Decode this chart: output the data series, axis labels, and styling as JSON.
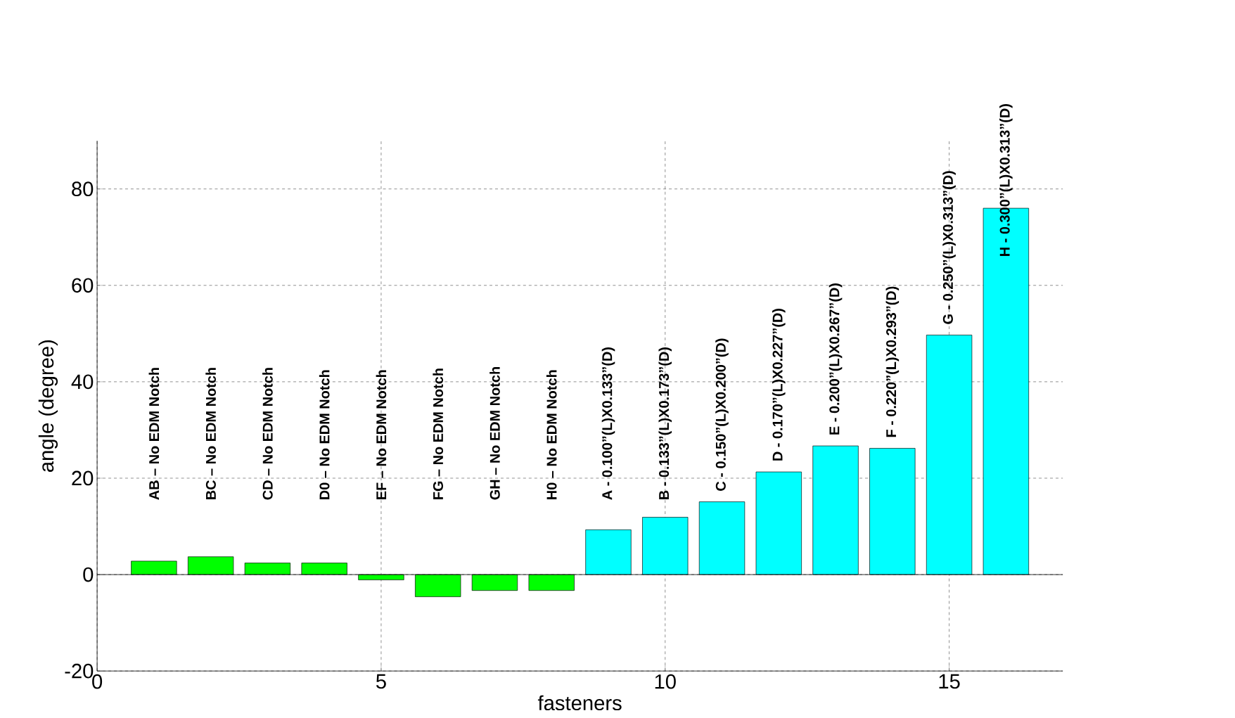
{
  "chart_data": {
    "type": "bar",
    "xlabel": "fasteners",
    "ylabel": "angle (degree)",
    "x": [
      1,
      2,
      3,
      4,
      5,
      6,
      7,
      8,
      9,
      10,
      11,
      12,
      13,
      14,
      15,
      16
    ],
    "values": [
      2.8,
      3.7,
      2.4,
      2.4,
      -1.1,
      -4.6,
      -3.3,
      -3.3,
      9.3,
      11.9,
      15.1,
      21.3,
      26.7,
      26.2,
      49.7,
      76
    ],
    "colors": [
      "#00ff00",
      "#00ff00",
      "#00ff00",
      "#00ff00",
      "#00ff00",
      "#00ff00",
      "#00ff00",
      "#00ff00",
      "#00ffff",
      "#00ffff",
      "#00ffff",
      "#00ffff",
      "#00ffff",
      "#00ffff",
      "#00ffff",
      "#00ffff"
    ],
    "xlim": [
      0,
      17
    ],
    "ylim": [
      -20,
      90
    ],
    "xticks": [
      0,
      5,
      10,
      15
    ],
    "yticks": [
      -20,
      0,
      20,
      40,
      60,
      80
    ],
    "grid": true,
    "annotations": [
      "AB – No EDM Notch",
      "BC – No EDM Notch",
      "CD – No EDM Notch",
      "D0 – No EDM Notch",
      "EF – No EDM Notch",
      "FG – No EDM Notch",
      "GH – No EDM Notch",
      "H0 – No EDM Notch",
      "A - 0.100”(L)X0.133”(D)",
      "B - 0.133”(L)X0.173”(D)",
      "C - 0.150”(L)X0.200”(D)",
      "D - 0.170”(L)X0.227”(D)",
      "E - 0.200”(L)X0.267”(D)",
      "F - 0.220”(L)X0.293”(D)",
      "G - 0.250”(L)X0.313”(D)",
      "H - 0.300”(L)X0.313”(D)"
    ]
  }
}
